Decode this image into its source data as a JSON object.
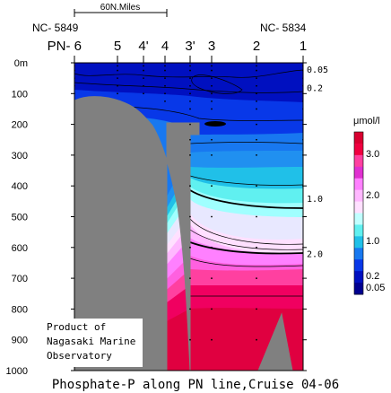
{
  "chart_data": {
    "type": "heatmap",
    "title": "Phosphate-P along PN line,Cruise 04-06",
    "yticks": [
      "0m",
      "100",
      "200",
      "300",
      "400",
      "500",
      "600",
      "700",
      "800",
      "900",
      "1000"
    ],
    "ylim": [
      0,
      1000
    ],
    "stations": [
      "PN- 6",
      "5",
      "4'",
      "4",
      "3'",
      "3",
      "2",
      "1"
    ],
    "station_ids": {
      "left": "NC- 5849",
      "right": "NC- 5834"
    },
    "scale_bar": "60N.Miles",
    "contour_labels": [
      "0.05",
      "0.2",
      "1.0",
      "2.0"
    ],
    "contour_depths": [
      {
        "value": 0.05,
        "depth": 20
      },
      {
        "value": 0.2,
        "depth": 80
      },
      {
        "value": 1.0,
        "depth": 440
      },
      {
        "value": 2.0,
        "depth": 620
      }
    ],
    "colorbar": {
      "unit": "μmol/l",
      "labels": [
        "3.0",
        "2.0",
        "1.0",
        "0.2",
        "0.05"
      ],
      "colors": [
        "#d80030",
        "#f00040",
        "#ff40a0",
        "#e030d0",
        "#ff80ff",
        "#ffb8ff",
        "#ffe0ff",
        "#c0ffff",
        "#60f0f0",
        "#20c0e8",
        "#1878f0",
        "#0838e8",
        "#0010c0",
        "#000090"
      ]
    },
    "note": [
      "Product of",
      "Nagasaki Marine",
      "Observatory"
    ]
  }
}
